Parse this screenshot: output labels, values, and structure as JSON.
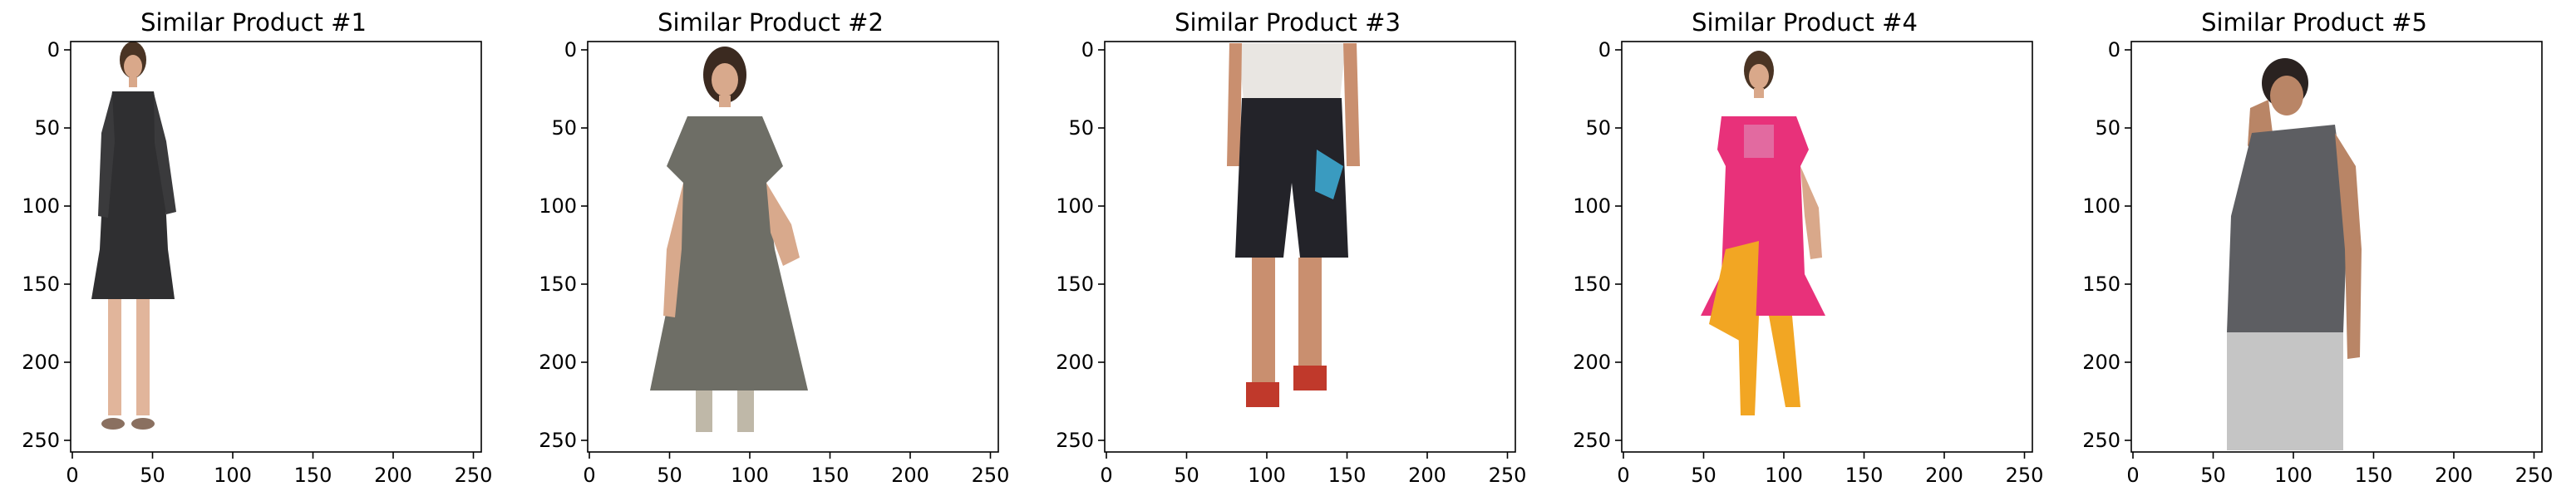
{
  "figure": {
    "panels": [
      {
        "title": "Similar Product #1",
        "image": "woman-black-dress-icon",
        "xticks": [
          "0",
          "50",
          "100",
          "150",
          "200",
          "250"
        ],
        "yticks": [
          "0",
          "50",
          "100",
          "150",
          "200",
          "250"
        ]
      },
      {
        "title": "Similar Product #2",
        "image": "woman-grey-kurta-icon",
        "xticks": [
          "0",
          "50",
          "100",
          "150",
          "200",
          "250"
        ],
        "yticks": [
          "0",
          "50",
          "100",
          "150",
          "200",
          "250"
        ]
      },
      {
        "title": "Similar Product #3",
        "image": "man-black-shorts-icon",
        "xticks": [
          "0",
          "50",
          "100",
          "150",
          "200",
          "250"
        ],
        "yticks": [
          "0",
          "50",
          "100",
          "150",
          "200",
          "250"
        ]
      },
      {
        "title": "Similar Product #4",
        "image": "woman-pink-kurta-icon",
        "xticks": [
          "0",
          "50",
          "100",
          "150",
          "200",
          "250"
        ],
        "yticks": [
          "0",
          "50",
          "100",
          "150",
          "200",
          "250"
        ]
      },
      {
        "title": "Similar Product #5",
        "image": "man-grey-tank-top-icon",
        "xticks": [
          "0",
          "50",
          "100",
          "150",
          "200",
          "250"
        ],
        "yticks": [
          "0",
          "50",
          "100",
          "150",
          "200",
          "250"
        ]
      }
    ]
  }
}
